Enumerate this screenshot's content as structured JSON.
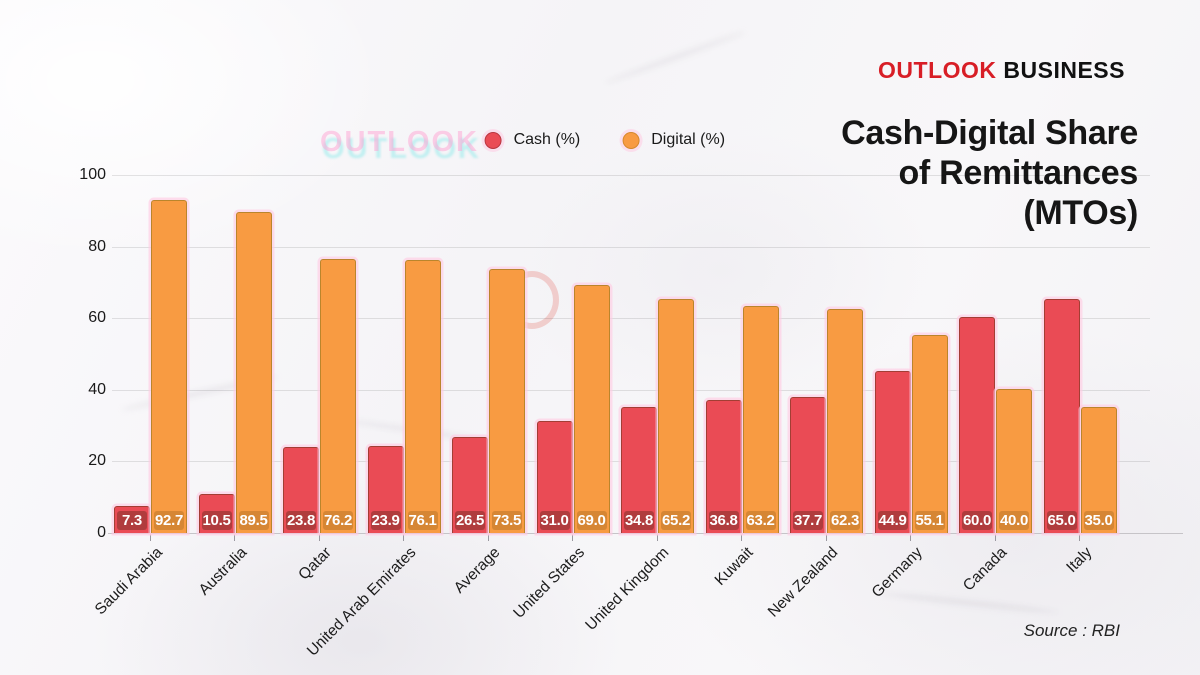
{
  "brand": {
    "part1": "OUTLOOK",
    "part2": "BUSINESS"
  },
  "title": {
    "lines": [
      "Cash-Digital Share",
      "of Remittances",
      "(MTOs)"
    ]
  },
  "watermark": "OUTLOOK",
  "source": "Source : RBI",
  "colors": {
    "cash": "#ea4b55",
    "digital": "#f89b42",
    "brand_red": "#d81e26",
    "text": "#161616"
  },
  "chart_data": {
    "type": "bar",
    "title": "Cash-Digital Share of Remittances (MTOs)",
    "categories": [
      "Saudi Arabia",
      "Australia",
      "Qatar",
      "United Arab Emirates",
      "Average",
      "United States",
      "United Kingdom",
      "Kuwait",
      "New Zealand",
      "Germany",
      "Canada",
      "Italy"
    ],
    "series": [
      {
        "name": "Cash (%)",
        "color": "#ea4b55",
        "values": [
          7.3,
          10.5,
          23.8,
          23.9,
          26.5,
          31.0,
          34.8,
          36.8,
          37.7,
          44.9,
          60.0,
          65.0
        ]
      },
      {
        "name": "Digital (%)",
        "color": "#f89b42",
        "values": [
          92.7,
          89.5,
          76.2,
          76.1,
          73.5,
          69.0,
          65.2,
          63.2,
          62.3,
          55.1,
          40.0,
          35.0
        ]
      }
    ],
    "xlabel": "",
    "ylabel": "",
    "ylim": [
      0,
      100
    ],
    "yticks": [
      0,
      20,
      40,
      60,
      80,
      100
    ],
    "grid": true,
    "legend_position": "top-center",
    "value_labels": "inside-base",
    "bar_label_decimals": 1
  }
}
